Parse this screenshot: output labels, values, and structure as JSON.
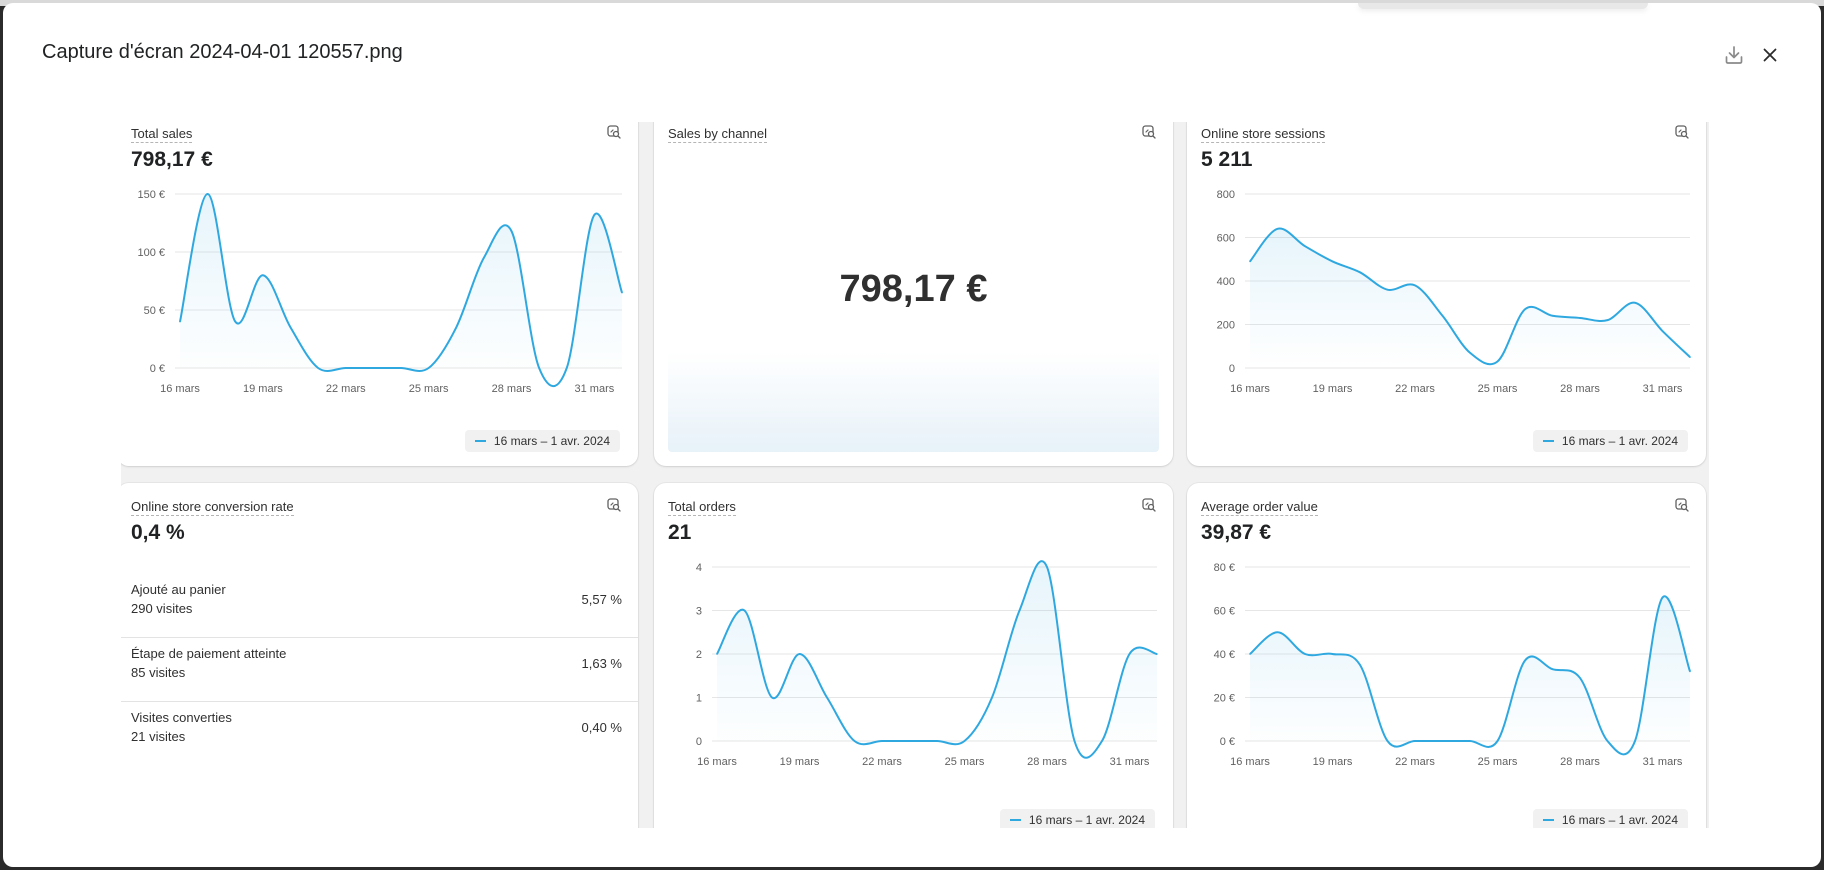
{
  "header": {
    "filename": "Capture d'écran 2024-04-01 120557.png",
    "download_icon": "download-icon",
    "close_icon": "close-icon"
  },
  "colors": {
    "series": "#2fa8e0",
    "background": "#f1f1f1"
  },
  "legend_label": "16 mars – 1 avr. 2024",
  "x_ticks": [
    "16 mars",
    "19 mars",
    "22 mars",
    "25 mars",
    "28 mars",
    "31 mars"
  ],
  "cards": {
    "total_sales": {
      "title": "Total sales",
      "value": "798,17 €"
    },
    "sales_by_channel": {
      "title": "Sales by channel",
      "big_value": "798,17 €"
    },
    "sessions": {
      "title": "Online store sessions",
      "value": "5 211"
    },
    "conversion": {
      "title": "Online store conversion rate",
      "value": "0,4 %",
      "rows": [
        {
          "label": "Ajouté au panier",
          "sub": "290 visites",
          "pct": "5,57 %"
        },
        {
          "label": "Étape de paiement atteinte",
          "sub": "85 visites",
          "pct": "1,63 %"
        },
        {
          "label": "Visites converties",
          "sub": "21 visites",
          "pct": "0,40 %"
        }
      ]
    },
    "total_orders": {
      "title": "Total orders",
      "value": "21"
    },
    "aov": {
      "title": "Average order value",
      "value": "39,87 €"
    }
  },
  "chart_data": [
    {
      "type": "line",
      "title": "Total sales",
      "x": [
        "16 mars",
        "17 mars",
        "18 mars",
        "19 mars",
        "20 mars",
        "21 mars",
        "22 mars",
        "23 mars",
        "24 mars",
        "25 mars",
        "26 mars",
        "27 mars",
        "28 mars",
        "29 mars",
        "30 mars",
        "31 mars",
        "1 avr."
      ],
      "y_ticks": [
        "0 €",
        "50 €",
        "100 €",
        "150 €"
      ],
      "ylim": [
        0,
        150
      ],
      "series": [
        {
          "name": "16 mars – 1 avr. 2024",
          "values": [
            40,
            150,
            40,
            80,
            35,
            0,
            0,
            0,
            0,
            0,
            35,
            95,
            118,
            0,
            0,
            132,
            65
          ]
        }
      ]
    },
    {
      "type": "line",
      "title": "Online store sessions",
      "x": [
        "16 mars",
        "17 mars",
        "18 mars",
        "19 mars",
        "20 mars",
        "21 mars",
        "22 mars",
        "23 mars",
        "24 mars",
        "25 mars",
        "26 mars",
        "27 mars",
        "28 mars",
        "29 mars",
        "30 mars",
        "31 mars",
        "1 avr."
      ],
      "y_ticks": [
        "0",
        "200",
        "400",
        "600",
        "800"
      ],
      "ylim": [
        0,
        800
      ],
      "series": [
        {
          "name": "16 mars – 1 avr. 2024",
          "values": [
            490,
            640,
            560,
            490,
            440,
            360,
            380,
            240,
            70,
            30,
            270,
            240,
            230,
            220,
            300,
            170,
            50
          ]
        }
      ]
    },
    {
      "type": "line",
      "title": "Total orders",
      "x": [
        "16 mars",
        "17 mars",
        "18 mars",
        "19 mars",
        "20 mars",
        "21 mars",
        "22 mars",
        "23 mars",
        "24 mars",
        "25 mars",
        "26 mars",
        "27 mars",
        "28 mars",
        "29 mars",
        "30 mars",
        "31 mars",
        "1 avr."
      ],
      "y_ticks": [
        "0",
        "1",
        "2",
        "3",
        "4"
      ],
      "ylim": [
        0,
        4
      ],
      "series": [
        {
          "name": "16 mars – 1 avr. 2024",
          "values": [
            2,
            3,
            1,
            2,
            1,
            0,
            0,
            0,
            0,
            0,
            1,
            3,
            4,
            0,
            0,
            2,
            2
          ]
        }
      ]
    },
    {
      "type": "line",
      "title": "Average order value",
      "x": [
        "16 mars",
        "17 mars",
        "18 mars",
        "19 mars",
        "20 mars",
        "21 mars",
        "22 mars",
        "23 mars",
        "24 mars",
        "25 mars",
        "26 mars",
        "27 mars",
        "28 mars",
        "29 mars",
        "30 mars",
        "31 mars",
        "1 avr."
      ],
      "y_ticks": [
        "0 €",
        "20 €",
        "40 €",
        "60 €",
        "80 €"
      ],
      "ylim": [
        0,
        80
      ],
      "series": [
        {
          "name": "16 mars – 1 avr. 2024",
          "values": [
            40,
            50,
            40,
            40,
            35,
            0,
            0,
            0,
            0,
            0,
            37,
            33,
            29,
            0,
            0,
            66,
            32
          ]
        }
      ]
    }
  ]
}
